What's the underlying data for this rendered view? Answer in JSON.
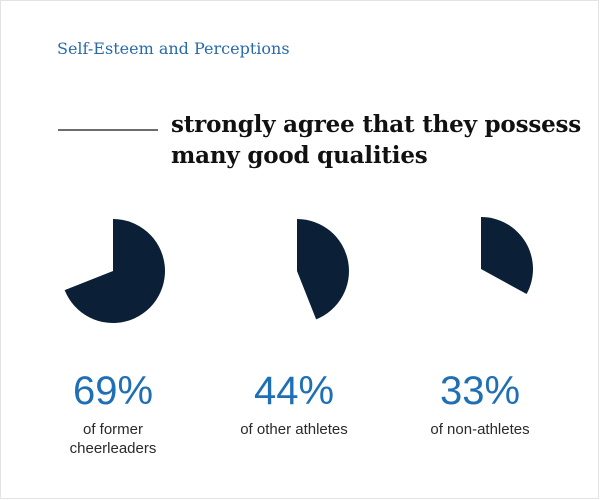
{
  "header": {
    "kicker": "Self-Esteem and Perceptions",
    "headline_line1": "strongly agree that they possess",
    "headline_line2": "many good qualities"
  },
  "colors": {
    "pie_fill": "#0b2036",
    "accent": "#1e6fb5",
    "kicker": "#2a6aa8"
  },
  "chart_data": {
    "type": "pie",
    "title": "strongly agree that they possess many good qualities",
    "series": [
      {
        "value": 69,
        "label": "69%",
        "caption_lines": [
          "of former",
          "cheerleaders"
        ]
      },
      {
        "value": 44,
        "label": "44%",
        "caption_lines": [
          "of other athletes"
        ]
      },
      {
        "value": 33,
        "label": "33%",
        "caption_lines": [
          "of non-athletes"
        ]
      }
    ]
  }
}
